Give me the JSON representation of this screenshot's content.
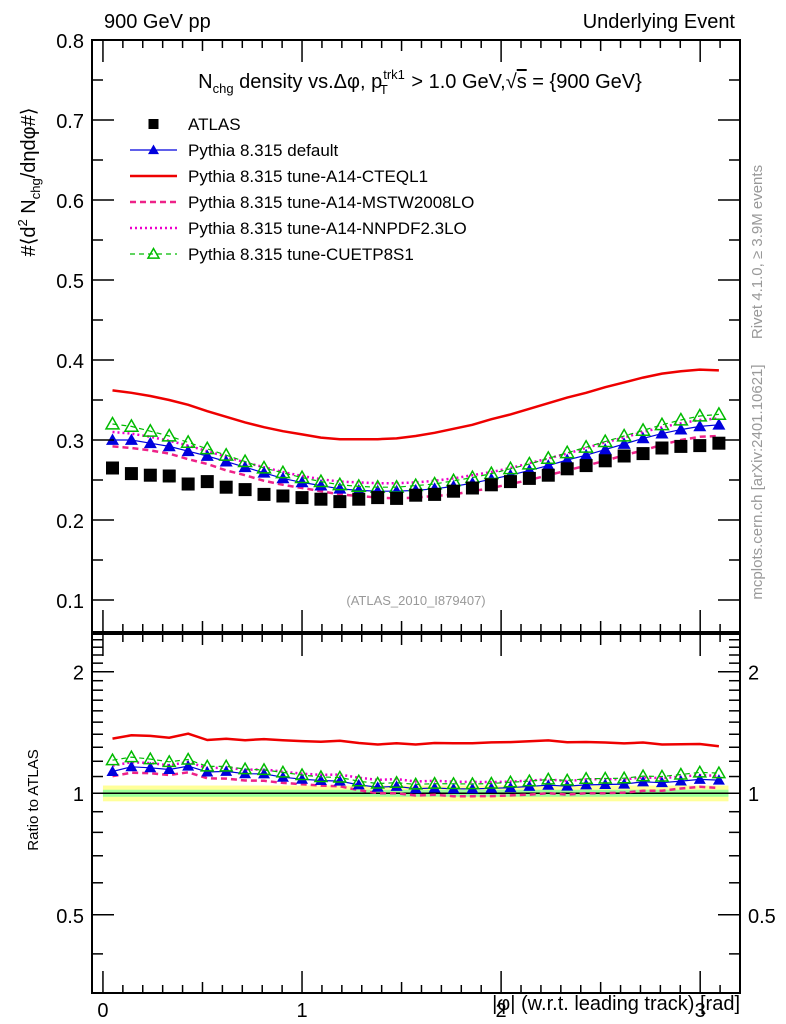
{
  "header": {
    "left": "900 GeV pp",
    "right": "Underlying Event"
  },
  "side_labels": {
    "rivet": "Rivet 4.1.0, ≥ 3.9M events",
    "mcplots": "mcplots.cern.ch [arXiv:2401.10621]"
  },
  "chart_data": [
    {
      "type": "scatter",
      "panel": "main",
      "title": "N_chg density vs. Δφ, p_T^trk1 > 1.0 GeV, √s = {900 GeV}",
      "title_parts": {
        "n": "N",
        "n_sub": "chg",
        "mid": " density vs.Δφ, p",
        "p_sub": "T",
        "p_sup": "trk1",
        "tail": " > 1.0 GeV,",
        "sqrt": "√",
        "s": "s",
        "end": " = {900 GeV}"
      },
      "ylabel": "#⟨d² N_chg/dηdφ#⟩",
      "ylabel_parts": {
        "a": "#⟨d",
        "sup": "2",
        "b": " N",
        "sub": "chg",
        "c": "/dηdφ#⟩"
      },
      "xlabel": "",
      "xlim": [
        -0.055,
        3.2
      ],
      "ylim": [
        0.06,
        0.8
      ],
      "yticks": [
        0.1,
        0.2,
        0.3,
        0.4,
        0.5,
        0.6,
        0.7,
        0.8
      ],
      "ytick_labels": [
        "0.1",
        "0.2",
        "0.3",
        "0.4",
        "0.5",
        "0.6",
        "0.7",
        "0.8"
      ],
      "grid": false,
      "legend_position": "top-left",
      "annotation": "(ATLAS_2010_I879407)",
      "x": [
        0.048,
        0.143,
        0.238,
        0.333,
        0.428,
        0.524,
        0.619,
        0.714,
        0.809,
        0.904,
        1.0,
        1.095,
        1.19,
        1.285,
        1.38,
        1.475,
        1.571,
        1.666,
        1.761,
        1.856,
        1.951,
        2.047,
        2.142,
        2.237,
        2.332,
        2.427,
        2.523,
        2.618,
        2.713,
        2.808,
        2.903,
        2.998,
        3.094
      ],
      "series": [
        {
          "name": "ATLAS",
          "style": "data",
          "color": "#000000",
          "values": [
            0.265,
            0.258,
            0.256,
            0.255,
            0.245,
            0.248,
            0.241,
            0.238,
            0.232,
            0.23,
            0.228,
            0.226,
            0.223,
            0.226,
            0.228,
            0.227,
            0.231,
            0.232,
            0.236,
            0.24,
            0.244,
            0.248,
            0.252,
            0.256,
            0.264,
            0.268,
            0.274,
            0.28,
            0.283,
            0.29,
            0.292,
            0.293,
            0.296
          ]
        },
        {
          "name": "Pythia 8.315 default",
          "style": "solid-triangle",
          "color": "#0000dd",
          "values": [
            0.3,
            0.3,
            0.296,
            0.292,
            0.286,
            0.28,
            0.273,
            0.266,
            0.259,
            0.252,
            0.247,
            0.243,
            0.239,
            0.237,
            0.236,
            0.236,
            0.237,
            0.239,
            0.242,
            0.246,
            0.251,
            0.256,
            0.262,
            0.268,
            0.275,
            0.281,
            0.288,
            0.295,
            0.302,
            0.308,
            0.313,
            0.317,
            0.319
          ]
        },
        {
          "name": "Pythia 8.315 tune-A14-CTEQL1",
          "style": "solid",
          "color": "#ee0000",
          "values": [
            0.362,
            0.359,
            0.355,
            0.35,
            0.344,
            0.336,
            0.329,
            0.322,
            0.316,
            0.311,
            0.307,
            0.303,
            0.301,
            0.301,
            0.301,
            0.302,
            0.305,
            0.309,
            0.314,
            0.319,
            0.326,
            0.332,
            0.339,
            0.346,
            0.353,
            0.359,
            0.366,
            0.372,
            0.378,
            0.383,
            0.386,
            0.388,
            0.387
          ]
        },
        {
          "name": "Pythia 8.315 tune-A14-MSTW2008LO",
          "style": "dashed",
          "color": "#ee2288",
          "values": [
            0.292,
            0.29,
            0.287,
            0.283,
            0.276,
            0.27,
            0.262,
            0.256,
            0.249,
            0.244,
            0.24,
            0.236,
            0.232,
            0.23,
            0.228,
            0.227,
            0.228,
            0.23,
            0.232,
            0.236,
            0.24,
            0.245,
            0.25,
            0.256,
            0.262,
            0.268,
            0.274,
            0.281,
            0.287,
            0.294,
            0.3,
            0.304,
            0.305
          ]
        },
        {
          "name": "Pythia 8.315 tune-A14-NNPDF2.3LO",
          "style": "dotted",
          "color": "#ee00cc",
          "values": [
            0.31,
            0.308,
            0.304,
            0.299,
            0.293,
            0.286,
            0.279,
            0.272,
            0.266,
            0.26,
            0.255,
            0.251,
            0.248,
            0.247,
            0.246,
            0.246,
            0.247,
            0.249,
            0.252,
            0.256,
            0.26,
            0.265,
            0.271,
            0.277,
            0.283,
            0.29,
            0.297,
            0.303,
            0.31,
            0.316,
            0.321,
            0.325,
            0.327
          ]
        },
        {
          "name": "Pythia 8.315 tune-CUETP8S1",
          "style": "dashed-open-triangle",
          "color": "#00bb00",
          "values": [
            0.32,
            0.317,
            0.311,
            0.305,
            0.297,
            0.289,
            0.281,
            0.273,
            0.265,
            0.259,
            0.253,
            0.248,
            0.244,
            0.242,
            0.241,
            0.241,
            0.243,
            0.245,
            0.249,
            0.253,
            0.258,
            0.264,
            0.27,
            0.277,
            0.284,
            0.291,
            0.298,
            0.305,
            0.312,
            0.319,
            0.325,
            0.33,
            0.332
          ]
        }
      ]
    },
    {
      "type": "line",
      "panel": "ratio",
      "title": "",
      "ylabel": "Ratio to ATLAS",
      "xlabel": "|φ| (w.r.t. leading track) [rad]",
      "yscale": "log",
      "xlim": [
        -0.055,
        3.2
      ],
      "ylim": [
        0.32,
        2.48
      ],
      "xticks": [
        0,
        1,
        2,
        3
      ],
      "xtick_labels": [
        "0",
        "1",
        "2",
        "3"
      ],
      "yticks": [
        0.5,
        1,
        2
      ],
      "ytick_labels": [
        "0.5",
        "1",
        "2"
      ],
      "band_inner": 0.02,
      "band_outer": 0.045,
      "band_inner_color": "#99ff99",
      "band_outer_color": "#ffff99",
      "reference_line": 1
    }
  ]
}
